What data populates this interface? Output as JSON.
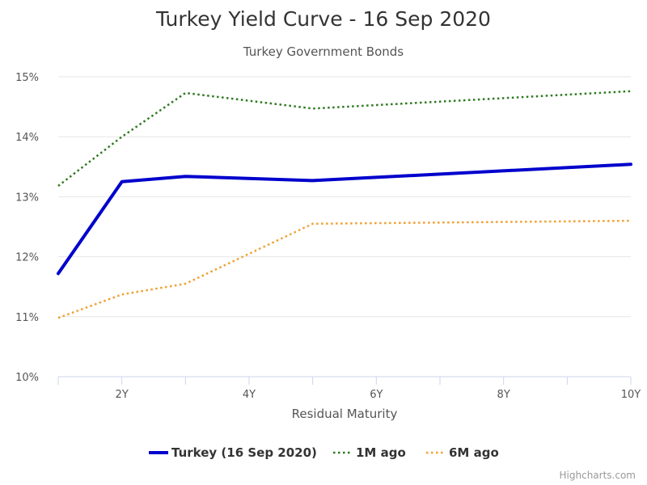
{
  "chart_data": {
    "type": "line",
    "title": "Turkey Yield Curve - 16 Sep 2020",
    "subtitle": "Turkey Government Bonds",
    "xlabel": "Residual Maturity",
    "ylabel": "",
    "xlim": [
      1,
      10
    ],
    "ylim": [
      10,
      15
    ],
    "x_ticks": [
      {
        "value": 2,
        "label": "2Y"
      },
      {
        "value": 4,
        "label": "4Y"
      },
      {
        "value": 6,
        "label": "6Y"
      },
      {
        "value": 8,
        "label": "8Y"
      },
      {
        "value": 10,
        "label": "10Y"
      }
    ],
    "x_minor_ticks": [
      1,
      2,
      3,
      4,
      5,
      6,
      7,
      8,
      9,
      10
    ],
    "y_ticks": [
      {
        "value": 10,
        "label": "10%"
      },
      {
        "value": 11,
        "label": "11%"
      },
      {
        "value": 12,
        "label": "12%"
      },
      {
        "value": 13,
        "label": "13%"
      },
      {
        "value": 14,
        "label": "14%"
      },
      {
        "value": 15,
        "label": "15%"
      }
    ],
    "grid": true,
    "legend_position": "bottom-center",
    "series": [
      {
        "name": "Turkey (16 Sep 2020)",
        "color": "#0000cc",
        "dash": "solid",
        "points": [
          [
            1,
            11.72
          ],
          [
            2,
            13.25
          ],
          [
            3,
            13.34
          ],
          [
            5,
            13.27
          ],
          [
            10,
            13.54
          ]
        ]
      },
      {
        "name": "1M ago",
        "color": "#2d7a1f",
        "dash": "dotted",
        "points": [
          [
            1,
            13.18
          ],
          [
            2,
            14.0
          ],
          [
            3,
            14.73
          ],
          [
            5,
            14.47
          ],
          [
            10,
            14.76
          ]
        ]
      },
      {
        "name": "6M ago",
        "color": "#f0a030",
        "dash": "dotted",
        "points": [
          [
            1,
            10.98
          ],
          [
            2,
            11.37
          ],
          [
            3,
            11.55
          ],
          [
            5,
            12.55
          ],
          [
            10,
            12.6
          ]
        ]
      }
    ],
    "credits": "Highcharts.com"
  }
}
